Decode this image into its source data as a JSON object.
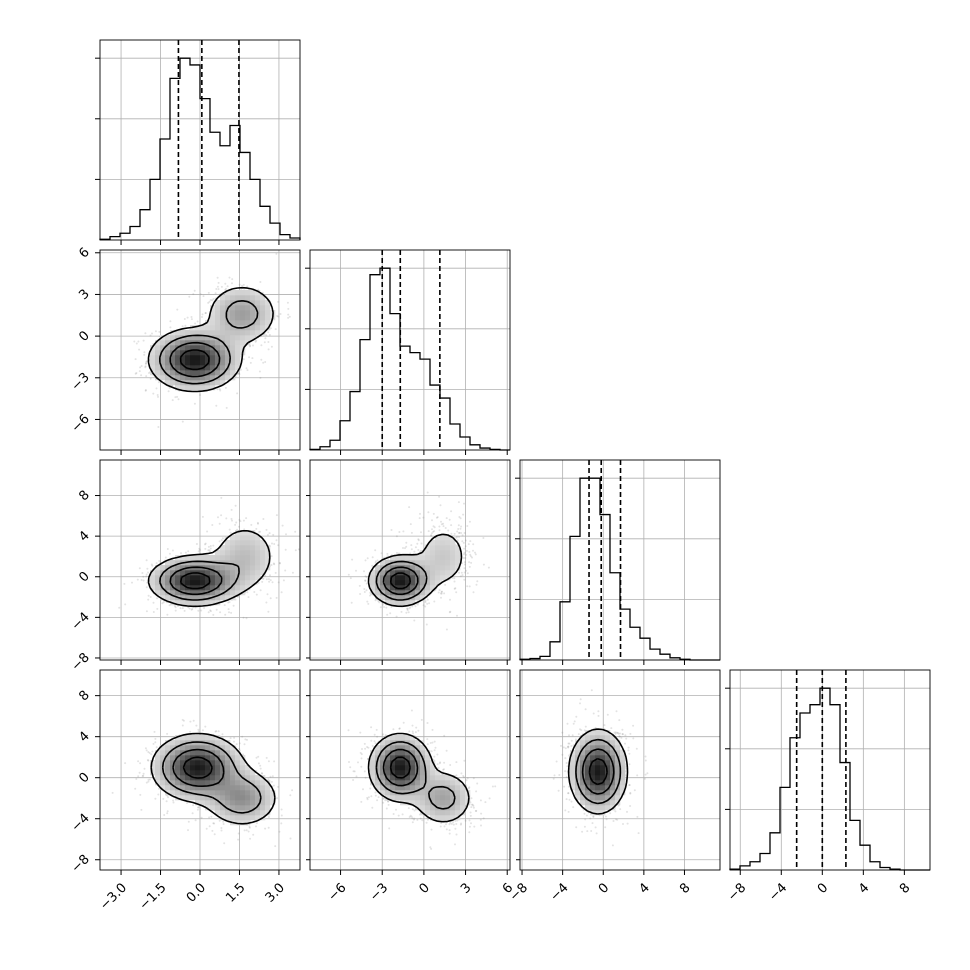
{
  "chart_data": {
    "type": "corner",
    "title": "",
    "parameters": [
      {
        "xlim": [
          -3.8,
          3.8
        ],
        "ticks": [
          -3.0,
          -1.5,
          0.0,
          1.5,
          3.0
        ],
        "tick_labels": [
          "−3.0",
          "−1.5",
          "0.0",
          "1.5",
          "3.0"
        ]
      },
      {
        "xlim": [
          -8.2,
          6.2
        ],
        "ticks": [
          -6,
          -3,
          0,
          3,
          6
        ],
        "tick_labels": [
          "−6",
          "−3",
          "0",
          "3",
          "6"
        ]
      },
      {
        "xlim": [
          -8.2,
          11.5
        ],
        "ticks": [
          -8,
          -4,
          0,
          4,
          8
        ],
        "tick_labels": [
          "−8",
          "−4",
          "0",
          "4",
          "8"
        ]
      },
      {
        "xlim": [
          -9.0,
          10.5
        ],
        "ticks": [
          -8,
          -4,
          0,
          4,
          8
        ],
        "tick_labels": [
          "−8",
          "−4",
          "0",
          "4",
          "8"
        ]
      }
    ],
    "histograms": [
      {
        "bin_edges": [
          -3.8,
          -3.42,
          -3.04,
          -2.66,
          -2.28,
          -1.9,
          -1.52,
          -1.14,
          -0.76,
          -0.38,
          0.0,
          0.38,
          0.76,
          1.14,
          1.52,
          1.9,
          2.28,
          2.66,
          3.04,
          3.42,
          3.8
        ],
        "counts": [
          1,
          5,
          10,
          20,
          45,
          90,
          150,
          240,
          270,
          260,
          210,
          160,
          140,
          170,
          130,
          90,
          50,
          25,
          8,
          3
        ],
        "quantiles": [
          -0.82,
          0.07,
          1.48
        ]
      },
      {
        "bin_edges": [
          -8.2,
          -7.48,
          -6.76,
          -6.04,
          -5.32,
          -4.6,
          -3.88,
          -3.16,
          -2.44,
          -1.72,
          -1.0,
          -0.28,
          0.44,
          1.16,
          1.88,
          2.6,
          3.32,
          4.04,
          4.76,
          5.48,
          6.2
        ],
        "counts": [
          1,
          5,
          15,
          45,
          90,
          170,
          270,
          280,
          210,
          160,
          150,
          140,
          100,
          80,
          40,
          20,
          8,
          3,
          1,
          0
        ],
        "quantiles": [
          -3.0,
          -1.7,
          1.15
        ]
      },
      {
        "bin_edges": [
          -8.2,
          -7.215,
          -6.23,
          -5.245,
          -4.26,
          -3.275,
          -2.29,
          -1.305,
          -0.32,
          0.665,
          1.65,
          2.635,
          3.62,
          4.605,
          5.59,
          6.575,
          7.56,
          8.545,
          9.53,
          10.515,
          11.5
        ],
        "counts": [
          1,
          2,
          5,
          25,
          80,
          170,
          250,
          250,
          200,
          120,
          70,
          45,
          30,
          15,
          8,
          3,
          1,
          0,
          0,
          0
        ],
        "quantiles": [
          -1.4,
          -0.2,
          1.7
        ]
      },
      {
        "bin_edges": [
          -9.0,
          -8.025,
          -7.05,
          -6.075,
          -5.1,
          -4.125,
          -3.15,
          -2.175,
          -1.2,
          -0.225,
          0.75,
          1.725,
          2.7,
          3.675,
          4.65,
          5.625,
          6.6,
          7.575,
          8.55,
          9.525,
          10.5
        ],
        "counts": [
          1,
          5,
          10,
          20,
          45,
          100,
          160,
          190,
          200,
          220,
          200,
          130,
          60,
          30,
          10,
          3,
          1,
          0,
          0,
          0
        ],
        "quantiles": [
          -2.5,
          0.0,
          2.3
        ]
      }
    ],
    "joint_distributions": [
      {
        "x_param": 0,
        "y_param": 1,
        "components": [
          {
            "mean": [
              -0.2,
              -1.7
            ],
            "sd": [
              0.85,
              1.1
            ],
            "weight": 0.72
          },
          {
            "mean": [
              1.6,
              1.6
            ],
            "sd": [
              0.75,
              1.2
            ],
            "weight": 0.28
          }
        ]
      },
      {
        "x_param": 0,
        "y_param": 2,
        "components": [
          {
            "mean": [
              -0.2,
              -0.4
            ],
            "sd": [
              0.85,
              1.2
            ],
            "weight": 0.72
          },
          {
            "mean": [
              1.7,
              2.0
            ],
            "sd": [
              0.75,
              2.0
            ],
            "weight": 0.28
          }
        ]
      },
      {
        "x_param": 1,
        "y_param": 2,
        "components": [
          {
            "mean": [
              -1.7,
              -0.4
            ],
            "sd": [
              1.1,
              1.2
            ],
            "weight": 0.72
          },
          {
            "mean": [
              1.4,
              2.0
            ],
            "sd": [
              1.2,
              2.0
            ],
            "weight": 0.28
          }
        ]
      },
      {
        "x_param": 0,
        "y_param": 3,
        "components": [
          {
            "mean": [
              -0.1,
              1.0
            ],
            "sd": [
              0.85,
              1.6
            ],
            "weight": 0.72
          },
          {
            "mean": [
              1.6,
              -2.0
            ],
            "sd": [
              0.75,
              1.5
            ],
            "weight": 0.28
          }
        ]
      },
      {
        "x_param": 1,
        "y_param": 3,
        "components": [
          {
            "mean": [
              -1.7,
              1.0
            ],
            "sd": [
              1.1,
              1.6
            ],
            "weight": 0.72
          },
          {
            "mean": [
              1.4,
              -2.0
            ],
            "sd": [
              1.2,
              1.5
            ],
            "weight": 0.28
          }
        ]
      },
      {
        "x_param": 2,
        "y_param": 3,
        "components": [
          {
            "mean": [
              -0.5,
              0.6
            ],
            "sd": [
              1.4,
              2.0
            ],
            "weight": 1.0
          }
        ]
      }
    ],
    "grid": true,
    "legend": "none"
  }
}
